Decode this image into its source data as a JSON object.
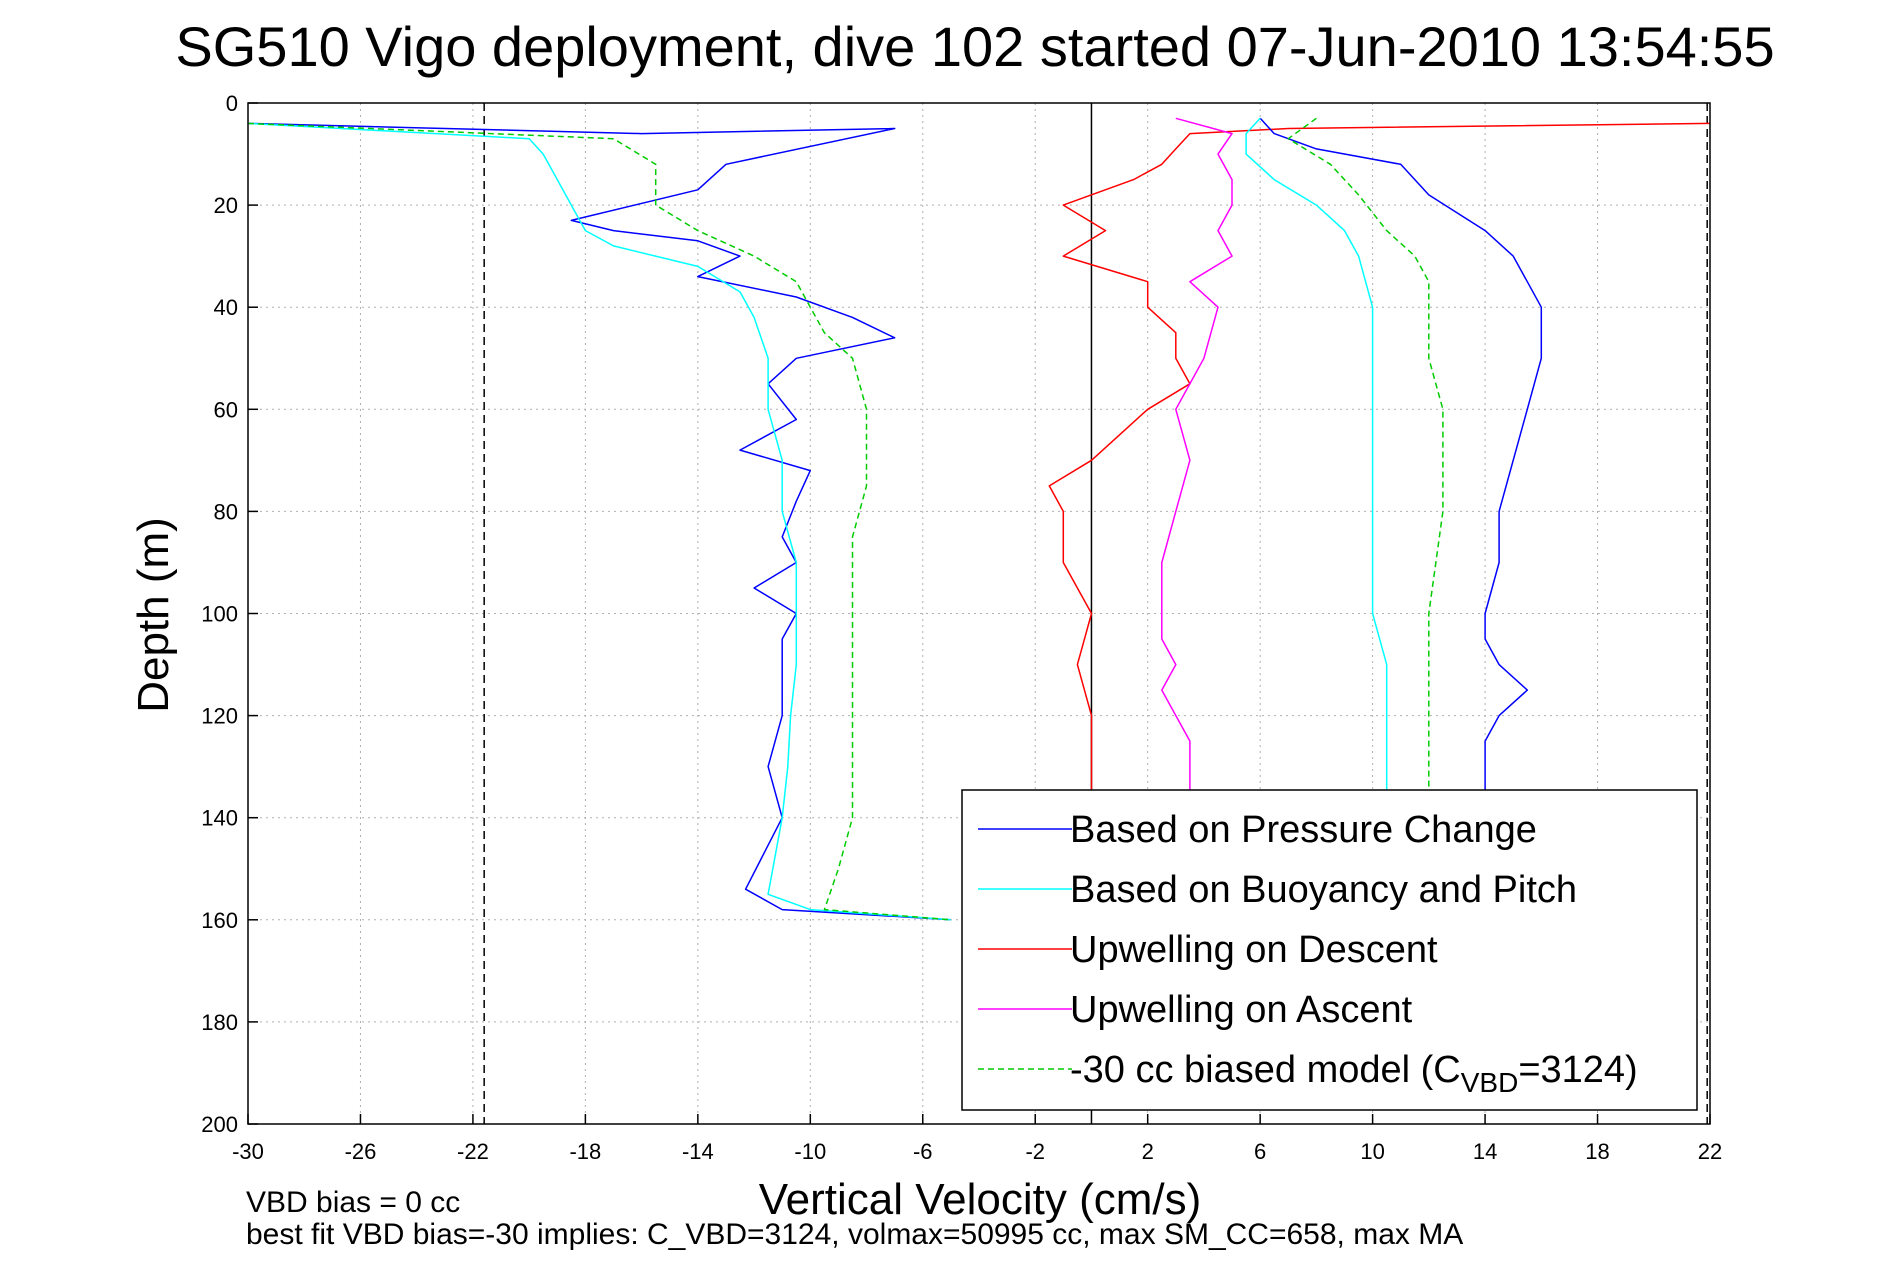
{
  "chart_data": {
    "type": "line",
    "title": "SG510 Vigo deployment, dive 102 started 07-Jun-2010 13:54:55",
    "xlabel": "Vertical Velocity (cm/s)",
    "ylabel": "Depth (m)",
    "xlim": [
      -30,
      22
    ],
    "ylim": [
      0,
      200
    ],
    "y_reversed": true,
    "grid": true,
    "xticks": [
      -30,
      -26,
      -22,
      -18,
      -14,
      -10,
      -6,
      -2,
      2,
      6,
      10,
      14,
      18,
      22
    ],
    "yticks": [
      0,
      20,
      40,
      60,
      80,
      100,
      120,
      140,
      160,
      180,
      200
    ],
    "reference_lines": [
      {
        "x": -21.6,
        "style": "dashed",
        "color": "#000000"
      },
      {
        "x": 21.9,
        "style": "dashed",
        "color": "#000000"
      },
      {
        "x": 0,
        "style": "solid",
        "color": "#000000"
      }
    ],
    "legend_position": "bottom-right",
    "series": [
      {
        "name": "Based on Pressure Change",
        "color": "#0000ff",
        "style": "solid",
        "x": [
          -30,
          -16,
          -7,
          -13,
          -14,
          -18.5,
          -17,
          -14,
          -12.5,
          -14,
          -10.5,
          -8.5,
          -7,
          -10.5,
          -11.5,
          -10.5,
          -12.5,
          -10,
          -10.5,
          -11,
          -10.5,
          -12,
          -10.5,
          -11,
          -11,
          -11,
          -11.5,
          -11,
          -12.3,
          -11,
          -5
        ],
        "y": [
          4,
          6,
          5,
          12,
          17,
          23,
          25,
          27,
          30,
          34,
          38,
          42,
          46,
          50,
          55,
          62,
          68,
          72,
          78,
          85,
          90,
          95,
          100,
          105,
          110,
          120,
          130,
          140,
          154,
          158,
          160
        ]
      },
      {
        "name": "Based on Buoyancy and Pitch",
        "color": "#00ffff",
        "style": "solid",
        "x": [
          -30,
          -20,
          -19.5,
          -19,
          -18.5,
          -18,
          -17,
          -14,
          -12.5,
          -12,
          -11.5,
          -11.5,
          -11,
          -11,
          -10.5,
          -10.5,
          -10.5,
          -10.7,
          -10.8,
          -11,
          -11.5,
          -10,
          -5
        ],
        "y": [
          4,
          7,
          10,
          15,
          20,
          25,
          28,
          32,
          37,
          42,
          50,
          60,
          70,
          80,
          90,
          100,
          110,
          120,
          130,
          140,
          155,
          158,
          160
        ]
      },
      {
        "name": "Upwelling on Descent",
        "color": "#ff0000",
        "style": "solid",
        "x": [
          22,
          7,
          3.5,
          3,
          2.5,
          1.5,
          -1,
          0.5,
          -1,
          2,
          2,
          3,
          3,
          3.5,
          2,
          1,
          0,
          -1.5,
          -1,
          -1,
          0,
          -0.5,
          0,
          0
        ],
        "y": [
          4,
          5,
          6,
          9,
          12,
          15,
          20,
          25,
          30,
          35,
          40,
          45,
          50,
          55,
          60,
          65,
          70,
          75,
          80,
          90,
          100,
          110,
          120,
          135
        ]
      },
      {
        "name": "Upwelling on Ascent",
        "color": "#ff00ff",
        "style": "solid",
        "x": [
          3,
          5,
          4.5,
          5,
          5,
          4.5,
          5,
          3.5,
          4.5,
          4,
          3,
          3.5,
          3,
          2.5,
          2.5,
          2.5,
          3,
          2.5,
          3.5,
          3.5
        ],
        "y": [
          3,
          6,
          10,
          15,
          20,
          25,
          30,
          35,
          40,
          50,
          60,
          70,
          80,
          90,
          100,
          105,
          110,
          115,
          125,
          135
        ]
      },
      {
        "name": "-30 cc biased model (C_VBD=3124)",
        "color": "#00cc00",
        "style": "dashed",
        "x": [
          -30,
          -17,
          -15.5,
          -15.5,
          -14,
          -12,
          -10.5,
          -10,
          -9.5,
          -8.5,
          -8,
          -8,
          -8.5,
          -8.5,
          -8.5,
          -8.5,
          -9,
          -9.5,
          -5
        ],
        "y": [
          4,
          7,
          12,
          20,
          25,
          30,
          35,
          40,
          45,
          50,
          60,
          75,
          85,
          100,
          120,
          140,
          150,
          158,
          160
        ]
      },
      {
        "name": "",
        "color": "#0000ff",
        "style": "solid",
        "x": [
          6,
          6.5,
          8,
          11,
          12,
          14,
          15,
          15.5,
          16,
          16,
          15.5,
          15,
          14.5,
          14.5,
          14,
          14,
          14.5,
          15.5,
          14.5,
          14,
          14,
          14
        ],
        "y": [
          3,
          6,
          9,
          12,
          18,
          25,
          30,
          35,
          40,
          50,
          60,
          70,
          80,
          90,
          100,
          105,
          110,
          115,
          120,
          125,
          130,
          135
        ]
      },
      {
        "name": "",
        "color": "#00ffff",
        "style": "solid",
        "x": [
          6,
          5.5,
          5.5,
          6.5,
          8,
          9,
          9.5,
          10,
          10,
          10,
          10,
          10,
          10,
          10.5,
          10.5,
          10.5
        ],
        "y": [
          3,
          6,
          10,
          15,
          20,
          25,
          30,
          40,
          50,
          60,
          70,
          80,
          100,
          110,
          120,
          135
        ]
      },
      {
        "name": "",
        "color": "#00cc00",
        "style": "dashed",
        "x": [
          8,
          7,
          8.5,
          9.5,
          10.5,
          11.5,
          12,
          12,
          12,
          12.5,
          12.5,
          12,
          12,
          12
        ],
        "y": [
          3,
          7,
          12,
          18,
          25,
          30,
          35,
          40,
          50,
          60,
          80,
          100,
          120,
          135
        ]
      }
    ]
  },
  "legend": {
    "items": [
      {
        "label": "Based on Pressure Change",
        "color": "#0000ff",
        "style": "solid"
      },
      {
        "label": "Based on Buoyancy and Pitch",
        "color": "#00ffff",
        "style": "solid"
      },
      {
        "label": "Upwelling on Descent",
        "color": "#ff0000",
        "style": "solid"
      },
      {
        "label": "Upwelling on Ascent",
        "color": "#ff00ff",
        "style": "solid"
      },
      {
        "label_prefix": "-30 cc biased model (C",
        "label_sub": "VBD",
        "label_suffix": "=3124)",
        "color": "#00cc00",
        "style": "dashed"
      }
    ]
  },
  "footer": {
    "line1": "VBD bias = 0 cc",
    "line2": "best fit VBD bias=-30 implies: C_VBD=3124, volmax=50995 cc, max SM_CC=658, max MA"
  }
}
